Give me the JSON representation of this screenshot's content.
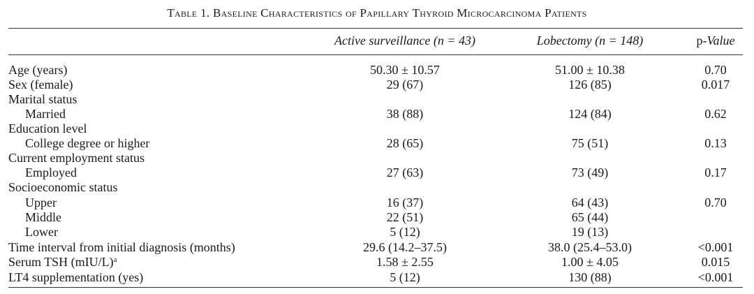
{
  "title": "Table 1. Baseline Characteristics of Papillary Thyroid Microcarcinoma Patients",
  "header": {
    "surveillance": "Active surveillance (n = 43)",
    "lobectomy": "Lobectomy (n = 148)",
    "p_value": [
      "p-",
      "Value"
    ]
  },
  "table": {
    "rows": [
      {
        "label": "Age (years)",
        "indent": false,
        "surveillance": "50.30 ± 10.57",
        "lobectomy": "51.00 ± 10.38",
        "p_value": "0.70"
      },
      {
        "label": "Sex (female)",
        "indent": false,
        "surveillance": "29 (67)",
        "lobectomy": "126 (85)",
        "p_value": "0.017"
      },
      {
        "label": "Marital status",
        "indent": false
      },
      {
        "label": "Married",
        "indent": true,
        "surveillance": "38 (88)",
        "lobectomy": "124 (84)",
        "p_value": "0.62"
      },
      {
        "label": "Education level",
        "indent": false
      },
      {
        "label": "College degree or higher",
        "indent": true,
        "surveillance": "28 (65)",
        "lobectomy": "75 (51)",
        "p_value": "0.13"
      },
      {
        "label": "Current employment status",
        "indent": false
      },
      {
        "label": "Employed",
        "indent": true,
        "surveillance": "27 (63)",
        "lobectomy": "73 (49)",
        "p_value": "0.17"
      },
      {
        "label": "Socioeconomic status",
        "indent": false
      },
      {
        "label": "Upper",
        "indent": true,
        "surveillance": "16 (37)",
        "lobectomy": "64 (43)",
        "p_value": "0.70"
      },
      {
        "label": "Middle",
        "indent": true,
        "surveillance": "22 (51)",
        "lobectomy": "65 (44)"
      },
      {
        "label": "Lower",
        "indent": true,
        "surveillance": "5 (12)",
        "lobectomy": "19 (13)"
      },
      {
        "label": "Time interval from initial diagnosis (months)",
        "indent": false,
        "surveillance": "29.6 (14.2–37.5)",
        "lobectomy": "38.0 (25.4–53.0)",
        "p_value": "<0.001"
      },
      {
        "label": "Serum TSH (mIU/L)",
        "sup": "a",
        "indent": false,
        "surveillance": "1.58 ± 2.55",
        "lobectomy": "1.00 ± 4.05",
        "p_value": "0.015"
      },
      {
        "label": "LT4 supplementation (yes)",
        "indent": false,
        "surveillance": "5 (12)",
        "lobectomy": "130 (88)",
        "p_value": "<0.001"
      }
    ]
  }
}
